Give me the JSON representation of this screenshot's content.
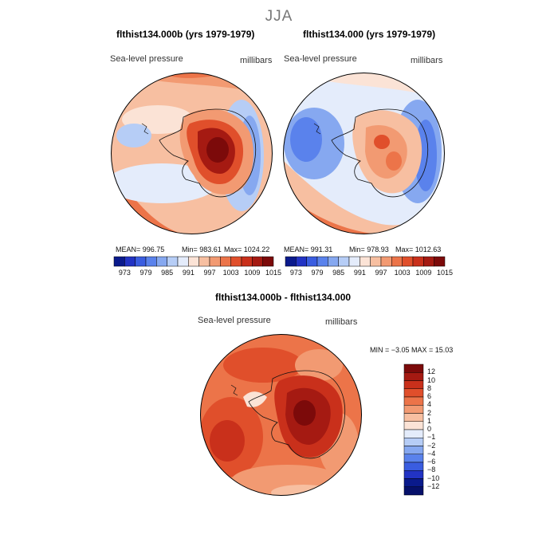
{
  "season": "JJA",
  "panels": [
    {
      "title": "flthist134.000b (yrs 1979-1979)",
      "field_label": "Sea-level pressure",
      "units_label": "millibars",
      "stats": {
        "mean": "MEAN= 996.75",
        "min": "Min= 983.61",
        "max": "Max= 1024.22"
      }
    },
    {
      "title": "flthist134.000 (yrs 1979-1979)",
      "field_label": "Sea-level pressure",
      "units_label": "millibars",
      "stats": {
        "mean": "MEAN= 991.31",
        "min": "Min= 978.93",
        "max": "Max= 1012.63"
      }
    }
  ],
  "shared_colorbar": {
    "tick_labels": [
      "973",
      "979",
      "985",
      "991",
      "997",
      "1003",
      "1009",
      "1015"
    ],
    "colors": [
      "#0a1a8c",
      "#2233c4",
      "#3a5de0",
      "#5a82ec",
      "#86a8f0",
      "#b6cdf6",
      "#e4ecfb",
      "#fbe3d6",
      "#f7bfa1",
      "#f29a72",
      "#ec7449",
      "#e04f2b",
      "#c9301b",
      "#a51a12",
      "#7c0a0a"
    ]
  },
  "diff_panel": {
    "title": "flthist134.000b - flthist134.000",
    "field_label": "Sea-level pressure",
    "units_label": "millibars",
    "minmax": "MIN =  −3.05 MAX =  15.03",
    "colorbar": {
      "tick_labels": [
        "12",
        "10",
        "8",
        "6",
        "4",
        "2",
        "1",
        "0",
        "−1",
        "−2",
        "−4",
        "−6",
        "−8",
        "−10",
        "−12"
      ],
      "colors": [
        "#7c0a0a",
        "#a51a12",
        "#c9301b",
        "#e04f2b",
        "#ec7449",
        "#f29a72",
        "#f7bfa1",
        "#fbe3d6",
        "#e4ecfb",
        "#b6cdf6",
        "#86a8f0",
        "#5a82ec",
        "#3a5de0",
        "#2233c4",
        "#0a1a8c",
        "#06106a"
      ]
    }
  }
}
